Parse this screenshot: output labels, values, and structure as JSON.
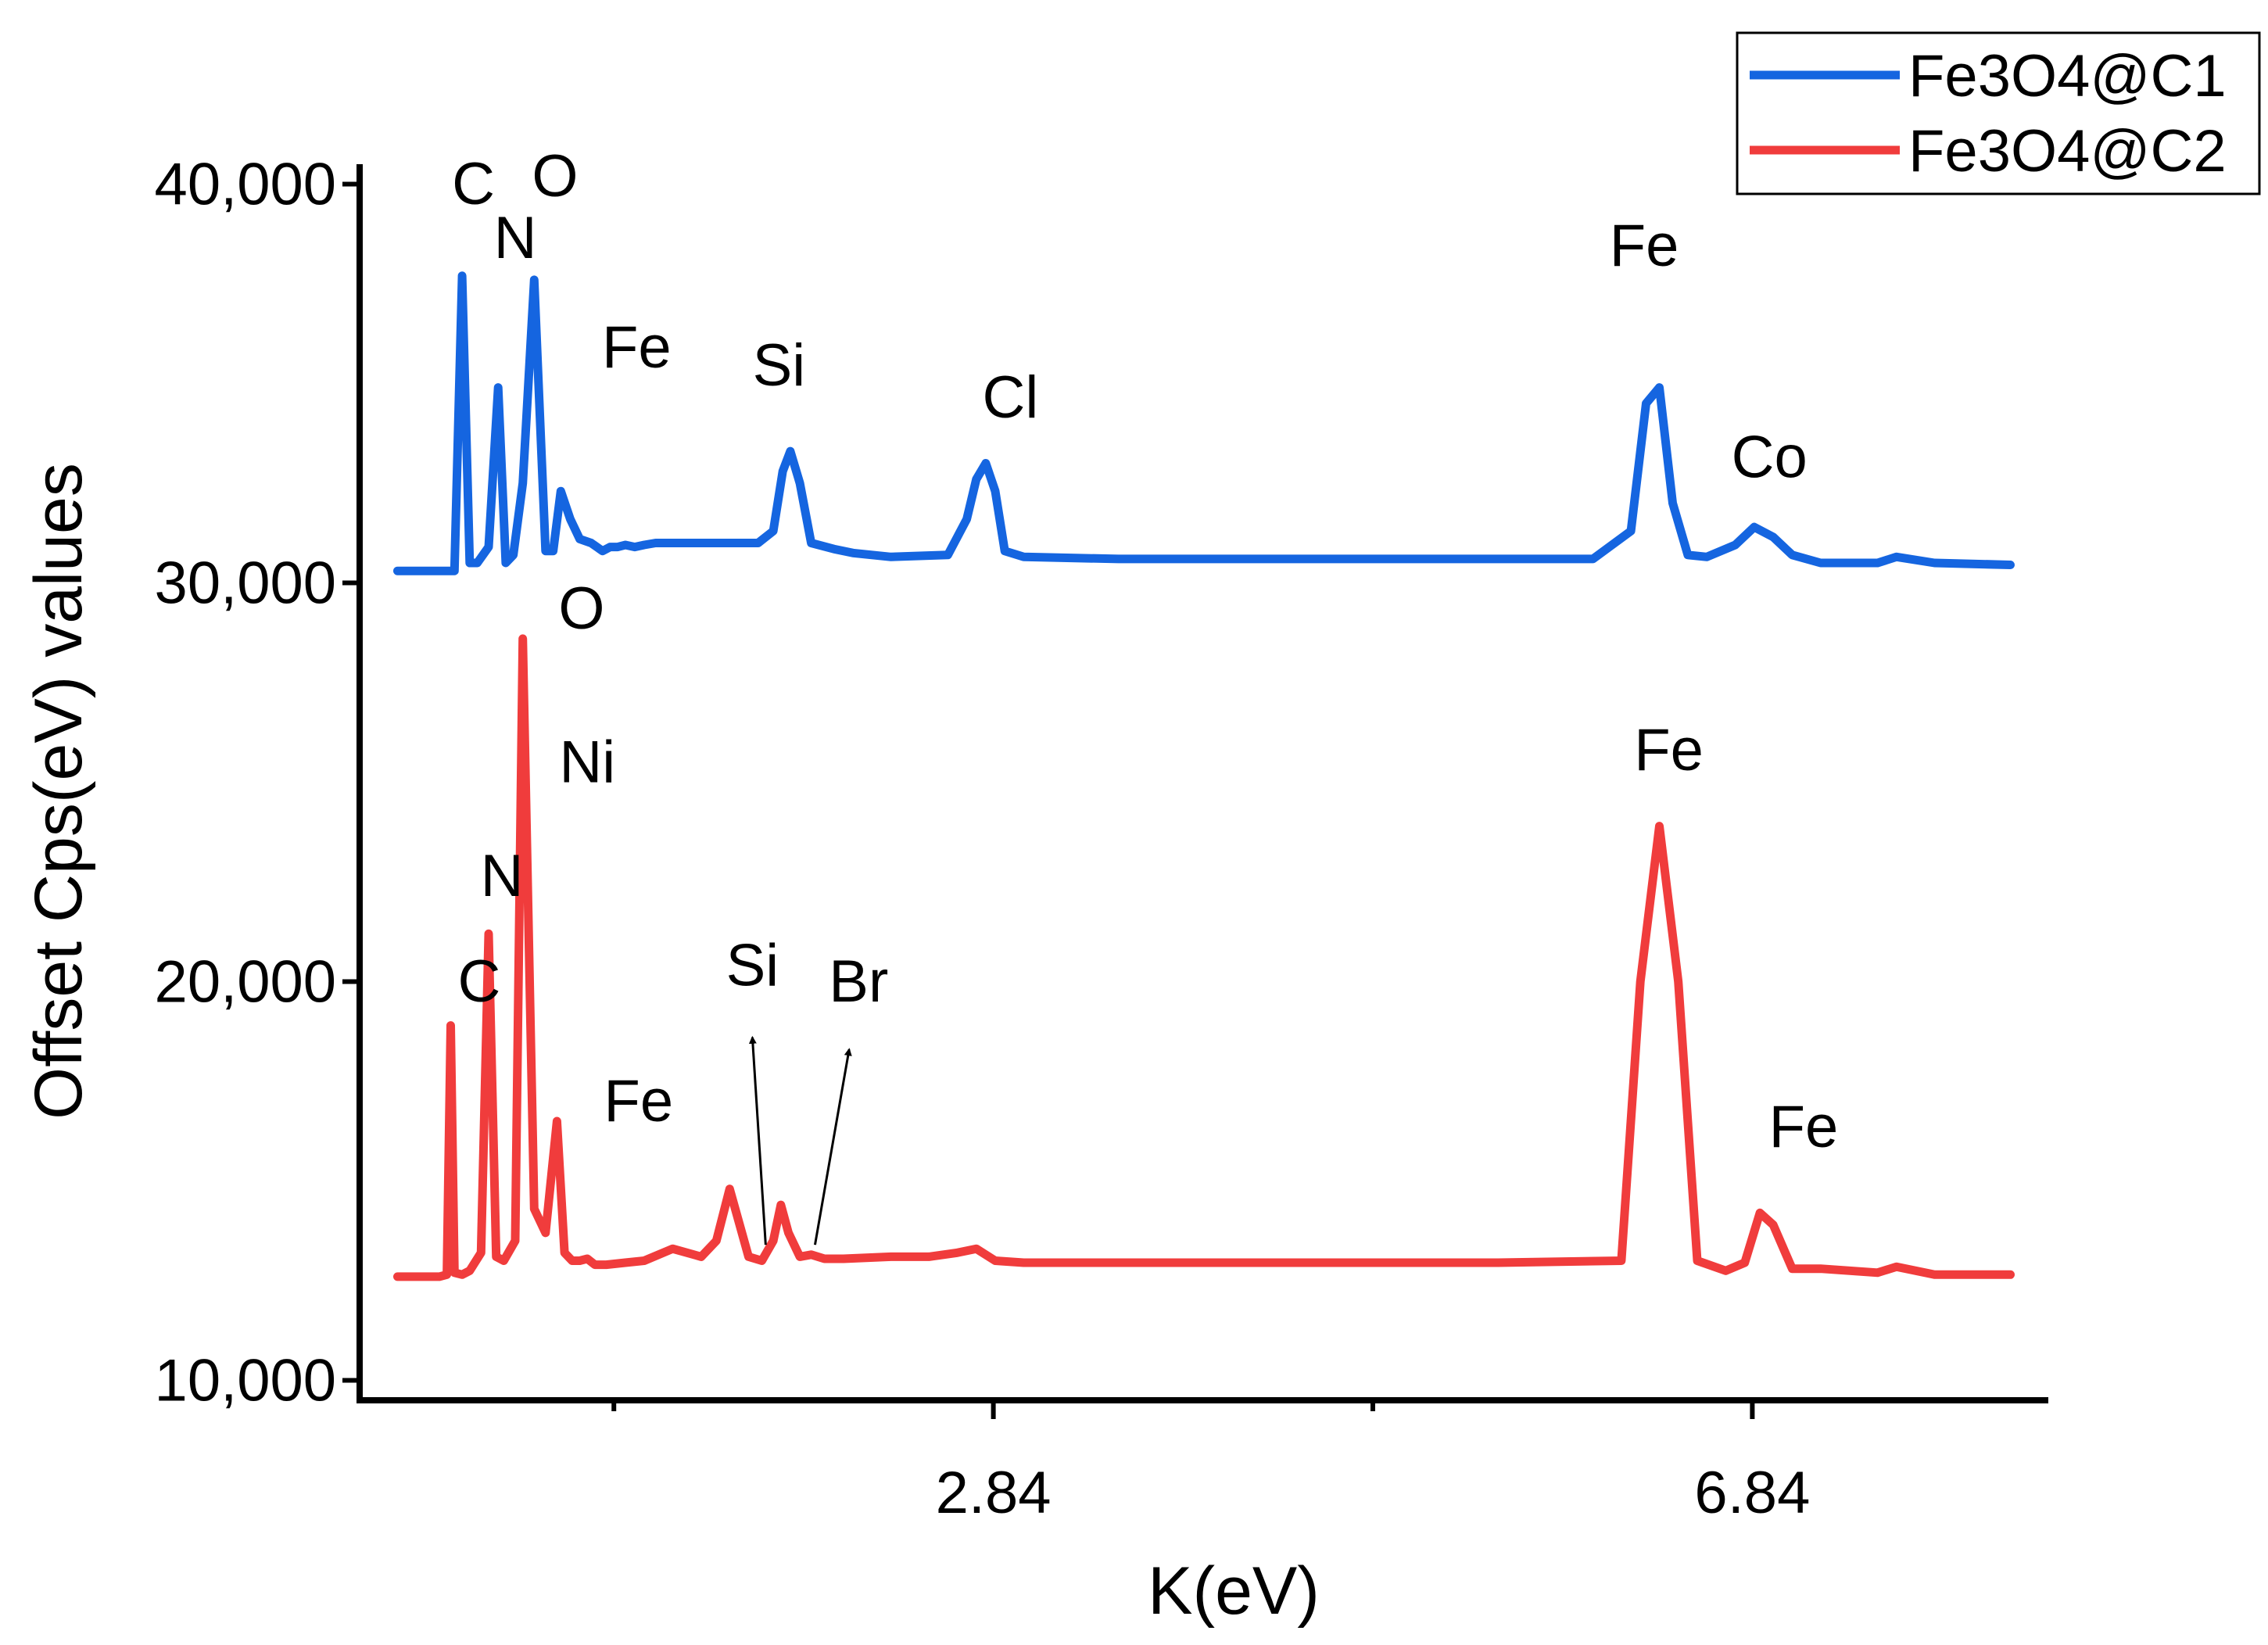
{
  "chart_data": {
    "type": "line",
    "xlabel": "K(eV)",
    "ylabel": "Offset Cps(eV) values",
    "x_ticks": [
      2.84,
      6.84
    ],
    "x_tick_labels": [
      "2.84",
      "6.84"
    ],
    "xlim": [
      -0.5,
      8.4
    ],
    "y_ticks": [
      10000,
      20000,
      30000,
      40000
    ],
    "y_tick_labels": [
      "10,000",
      "20,000",
      "30,000",
      "40,000"
    ],
    "ylim": [
      9500,
      40500
    ],
    "grid": false,
    "legend": "top-right",
    "series": [
      {
        "name": "Fe3O4@C1",
        "color": "#1565e0",
        "x": [
          -0.3,
          -0.1,
          0.0,
          0.04,
          0.08,
          0.12,
          0.18,
          0.23,
          0.27,
          0.31,
          0.36,
          0.42,
          0.48,
          0.52,
          0.56,
          0.61,
          0.66,
          0.72,
          0.78,
          0.82,
          0.86,
          0.9,
          0.95,
          1.0,
          1.06,
          1.12,
          1.3,
          1.5,
          1.6,
          1.68,
          1.73,
          1.77,
          1.82,
          1.88,
          2.0,
          2.1,
          2.3,
          2.6,
          2.7,
          2.75,
          2.8,
          2.85,
          2.9,
          3.0,
          3.5,
          4.5,
          5.5,
          6.0,
          6.2,
          6.28,
          6.35,
          6.42,
          6.5,
          6.6,
          6.75,
          6.85,
          6.95,
          7.05,
          7.2,
          7.5,
          7.6,
          7.8,
          8.2
        ],
        "y": [
          30300,
          30300,
          30300,
          37700,
          30500,
          30500,
          30900,
          34900,
          30500,
          30700,
          32500,
          37600,
          30800,
          30800,
          32300,
          31600,
          31100,
          31000,
          30800,
          30900,
          30900,
          30950,
          30900,
          30950,
          31000,
          31000,
          31000,
          31000,
          31000,
          31300,
          32800,
          33300,
          32500,
          31000,
          30850,
          30750,
          30650,
          30700,
          31600,
          32600,
          33000,
          32300,
          30800,
          30650,
          30600,
          30600,
          30600,
          30600,
          31300,
          34500,
          34900,
          32000,
          30700,
          30650,
          30950,
          31400,
          31150,
          30700,
          30500,
          30500,
          30650,
          30500,
          30450
        ]
      },
      {
        "name": "Fe3O4@C2",
        "color": "#f03c3c",
        "x": [
          -0.3,
          -0.08,
          -0.04,
          -0.02,
          0.0,
          0.04,
          0.08,
          0.14,
          0.18,
          0.22,
          0.26,
          0.32,
          0.36,
          0.42,
          0.48,
          0.54,
          0.58,
          0.62,
          0.66,
          0.7,
          0.74,
          0.8,
          0.9,
          1.0,
          1.15,
          1.3,
          1.38,
          1.45,
          1.55,
          1.62,
          1.68,
          1.72,
          1.76,
          1.82,
          1.88,
          1.95,
          2.05,
          2.3,
          2.5,
          2.65,
          2.75,
          2.85,
          3.0,
          3.5,
          4.5,
          5.5,
          6.15,
          6.25,
          6.35,
          6.45,
          6.55,
          6.7,
          6.8,
          6.88,
          6.95,
          7.05,
          7.2,
          7.5,
          7.6,
          7.8,
          8.2
        ],
        "y": [
          12600,
          12600,
          12650,
          18900,
          12700,
          12650,
          12750,
          13200,
          21200,
          13100,
          13000,
          13500,
          28600,
          14300,
          13700,
          16500,
          13200,
          13000,
          13000,
          13050,
          12900,
          12900,
          12950,
          13000,
          13300,
          13100,
          13500,
          14800,
          13100,
          13000,
          13500,
          14400,
          13700,
          13100,
          13150,
          13050,
          13050,
          13100,
          13100,
          13200,
          13300,
          13000,
          12950,
          12950,
          12950,
          12950,
          13000,
          20000,
          23900,
          20000,
          13000,
          12750,
          12950,
          14200,
          13900,
          12800,
          12800,
          12700,
          12850,
          12650,
          12650
        ]
      }
    ],
    "annotations": [
      {
        "series": "Fe3O4@C1",
        "text": "C",
        "x": 0.1,
        "y": 39500
      },
      {
        "series": "Fe3O4@C1",
        "text": "N",
        "x": 0.32,
        "y": 38150
      },
      {
        "series": "Fe3O4@C1",
        "text": "O",
        "x": 0.53,
        "y": 39700
      },
      {
        "series": "Fe3O4@C1",
        "text": "Fe",
        "x": 0.96,
        "y": 35400
      },
      {
        "series": "Fe3O4@C1",
        "text": "Si",
        "x": 1.71,
        "y": 34950
      },
      {
        "series": "Fe3O4@C1",
        "text": "Cl",
        "x": 2.93,
        "y": 34150
      },
      {
        "series": "Fe3O4@C1",
        "text": "Fe",
        "x": 6.27,
        "y": 37950
      },
      {
        "series": "Fe3O4@C1",
        "text": "Co",
        "x": 6.93,
        "y": 32650
      },
      {
        "series": "Fe3O4@C2",
        "text": "O",
        "x": 0.67,
        "y": 28850
      },
      {
        "series": "Fe3O4@C2",
        "text": "Ni",
        "x": 0.7,
        "y": 25000
      },
      {
        "series": "Fe3O4@C2",
        "text": "N",
        "x": 0.25,
        "y": 22150
      },
      {
        "series": "Fe3O4@C2",
        "text": "C",
        "x": 0.13,
        "y": 19500
      },
      {
        "series": "Fe3O4@C2",
        "text": "Fe",
        "x": 0.97,
        "y": 16500
      },
      {
        "series": "Fe3O4@C2",
        "text": "Si",
        "x": 1.57,
        "y": 19900
      },
      {
        "series": "Fe3O4@C2",
        "text": "Br",
        "x": 2.13,
        "y": 19500
      },
      {
        "series": "Fe3O4@C2",
        "text": "Fe",
        "x": 6.4,
        "y": 25300
      },
      {
        "series": "Fe3O4@C2",
        "text": "Fe",
        "x": 7.11,
        "y": 15850
      }
    ],
    "arrows": [
      {
        "label": "Si",
        "from": [
          1.64,
          13400
        ],
        "to": [
          1.57,
          18600
        ]
      },
      {
        "label": "Br",
        "from": [
          1.9,
          13400
        ],
        "to": [
          2.08,
          18300
        ]
      }
    ]
  }
}
